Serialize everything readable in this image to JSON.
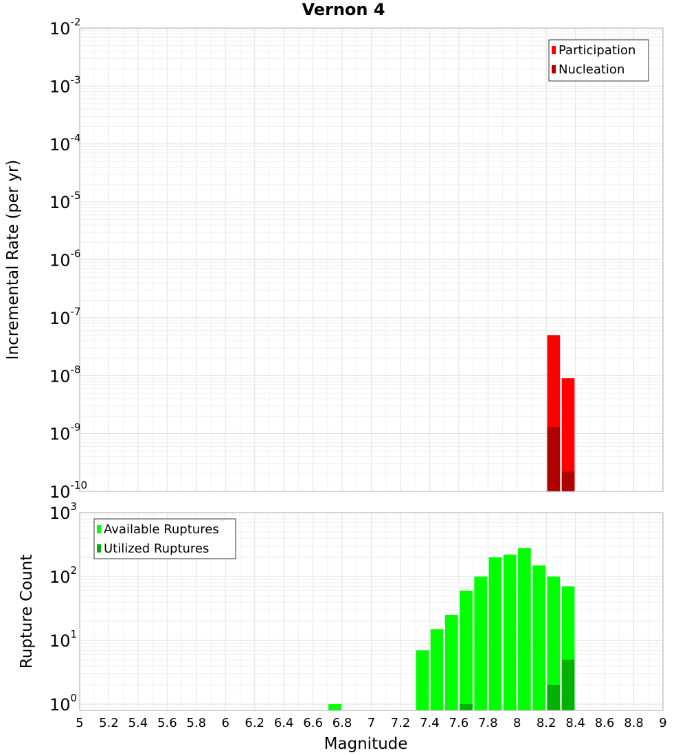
{
  "chart_data": [
    {
      "type": "bar",
      "title": "Vernon 4",
      "xlabel": "",
      "ylabel": "Incremental Rate (per yr)",
      "y_scale": "log",
      "xlim": [
        5,
        9
      ],
      "ylim": [
        1e-10,
        0.01
      ],
      "y_tick_labels": [
        {
          "base": "10",
          "exp": "-10"
        },
        {
          "base": "10",
          "exp": "-9"
        },
        {
          "base": "10",
          "exp": "-8"
        },
        {
          "base": "10",
          "exp": "-7"
        },
        {
          "base": "10",
          "exp": "-6"
        },
        {
          "base": "10",
          "exp": "-5"
        },
        {
          "base": "10",
          "exp": "-4"
        },
        {
          "base": "10",
          "exp": "-3"
        },
        {
          "base": "10",
          "exp": "-2"
        }
      ],
      "grid": true,
      "legend_position": "top-right",
      "series": [
        {
          "name": "Participation",
          "color": "#ff0000",
          "x": [
            8.25,
            8.35
          ],
          "values": [
            5e-08,
            9e-09
          ]
        },
        {
          "name": "Nucleation",
          "color": "#b20000",
          "x": [
            8.25,
            8.35
          ],
          "values": [
            1.3e-09,
            2.2e-10
          ]
        }
      ]
    },
    {
      "type": "bar",
      "title": "",
      "xlabel": "Magnitude",
      "ylabel": "Rupture Count",
      "y_scale": "log",
      "xlim": [
        5,
        9
      ],
      "ylim": [
        0.8,
        1000
      ],
      "y_tick_labels": [
        {
          "base": "10",
          "exp": "0"
        },
        {
          "base": "10",
          "exp": "1"
        },
        {
          "base": "10",
          "exp": "2"
        },
        {
          "base": "10",
          "exp": "3"
        }
      ],
      "x_tick_labels": [
        "5",
        "5.2",
        "5.4",
        "5.6",
        "5.8",
        "6",
        "6.2",
        "6.4",
        "6.6",
        "6.8",
        "7",
        "7.2",
        "7.4",
        "7.6",
        "7.8",
        "8",
        "8.2",
        "8.4",
        "8.6",
        "8.8",
        "9"
      ],
      "grid": true,
      "legend_position": "top-left",
      "series": [
        {
          "name": "Available Ruptures",
          "color": "#00ff00",
          "x": [
            6.75,
            7.35,
            7.45,
            7.55,
            7.65,
            7.75,
            7.85,
            7.95,
            8.05,
            8.15,
            8.25,
            8.35
          ],
          "values": [
            1,
            7,
            15,
            25,
            60,
            100,
            200,
            220,
            280,
            150,
            100,
            70
          ]
        },
        {
          "name": "Utilized Ruptures",
          "color": "#00b200",
          "x": [
            7.65,
            8.25,
            8.35
          ],
          "values": [
            1,
            2,
            5
          ]
        }
      ]
    }
  ]
}
